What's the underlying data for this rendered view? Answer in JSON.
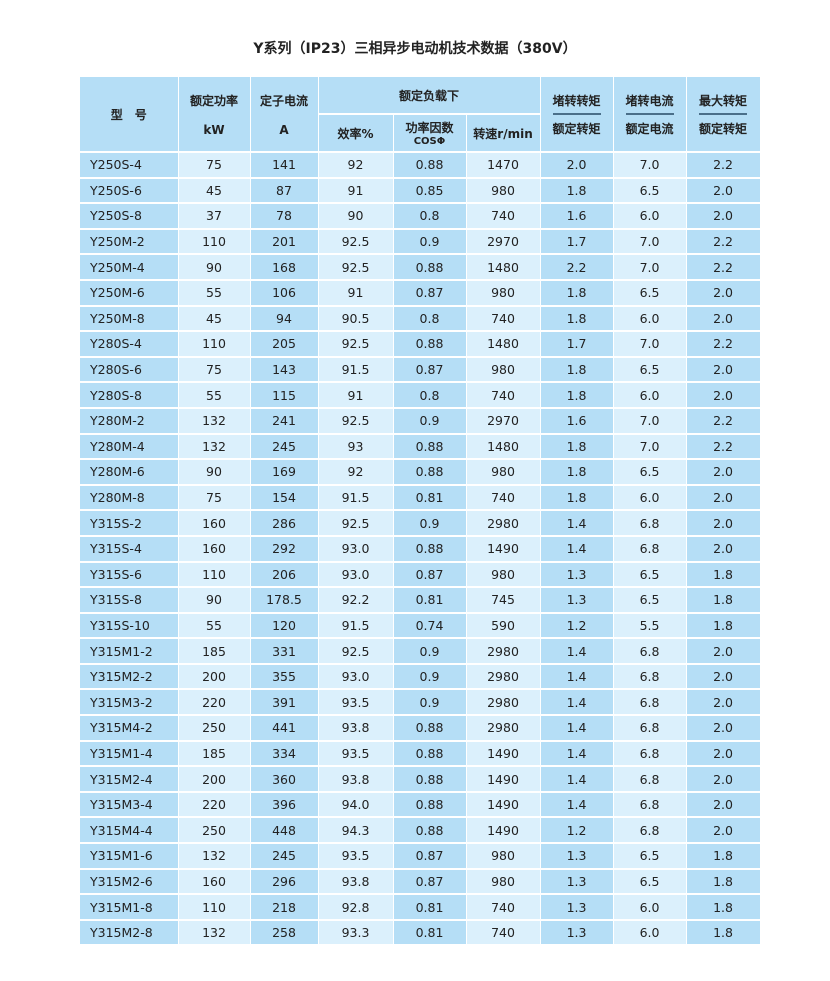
{
  "title": "Y系列（IP23）三相异步电动机技术数据（380V）",
  "header": {
    "model": "型　号",
    "power": "额定功率",
    "power_unit": "kW",
    "current": "定子电流",
    "current_unit": "A",
    "rated_load": "额定负载下",
    "efficiency": "效率%",
    "power_factor": "功率因数",
    "power_factor_sub": "COSΦ",
    "speed": "转速r/min",
    "locked_torque_top": "堵转转矩",
    "locked_torque_bottom": "额定转矩",
    "locked_current_top": "堵转电流",
    "locked_current_bottom": "额定电流",
    "max_torque_top": "最大转矩",
    "max_torque_bottom": "额定转矩"
  },
  "rows": [
    [
      "Y250S-4",
      "75",
      "141",
      "92",
      "0.88",
      "1470",
      "2.0",
      "7.0",
      "2.2"
    ],
    [
      "Y250S-6",
      "45",
      "87",
      "91",
      "0.85",
      "980",
      "1.8",
      "6.5",
      "2.0"
    ],
    [
      "Y250S-8",
      "37",
      "78",
      "90",
      "0.8",
      "740",
      "1.6",
      "6.0",
      "2.0"
    ],
    [
      "Y250M-2",
      "110",
      "201",
      "92.5",
      "0.9",
      "2970",
      "1.7",
      "7.0",
      "2.2"
    ],
    [
      "Y250M-4",
      "90",
      "168",
      "92.5",
      "0.88",
      "1480",
      "2.2",
      "7.0",
      "2.2"
    ],
    [
      "Y250M-6",
      "55",
      "106",
      "91",
      "0.87",
      "980",
      "1.8",
      "6.5",
      "2.0"
    ],
    [
      "Y250M-8",
      "45",
      "94",
      "90.5",
      "0.8",
      "740",
      "1.8",
      "6.0",
      "2.0"
    ],
    [
      "Y280S-4",
      "110",
      "205",
      "92.5",
      "0.88",
      "1480",
      "1.7",
      "7.0",
      "2.2"
    ],
    [
      "Y280S-6",
      "75",
      "143",
      "91.5",
      "0.87",
      "980",
      "1.8",
      "6.5",
      "2.0"
    ],
    [
      "Y280S-8",
      "55",
      "115",
      "91",
      "0.8",
      "740",
      "1.8",
      "6.0",
      "2.0"
    ],
    [
      "Y280M-2",
      "132",
      "241",
      "92.5",
      "0.9",
      "2970",
      "1.6",
      "7.0",
      "2.2"
    ],
    [
      "Y280M-4",
      "132",
      "245",
      "93",
      "0.88",
      "1480",
      "1.8",
      "7.0",
      "2.2"
    ],
    [
      "Y280M-6",
      "90",
      "169",
      "92",
      "0.88",
      "980",
      "1.8",
      "6.5",
      "2.0"
    ],
    [
      "Y280M-8",
      "75",
      "154",
      "91.5",
      "0.81",
      "740",
      "1.8",
      "6.0",
      "2.0"
    ],
    [
      "Y315S-2",
      "160",
      "286",
      "92.5",
      "0.9",
      "2980",
      "1.4",
      "6.8",
      "2.0"
    ],
    [
      "Y315S-4",
      "160",
      "292",
      "93.0",
      "0.88",
      "1490",
      "1.4",
      "6.8",
      "2.0"
    ],
    [
      "Y315S-6",
      "110",
      "206",
      "93.0",
      "0.87",
      "980",
      "1.3",
      "6.5",
      "1.8"
    ],
    [
      "Y315S-8",
      "90",
      "178.5",
      "92.2",
      "0.81",
      "745",
      "1.3",
      "6.5",
      "1.8"
    ],
    [
      "Y315S-10",
      "55",
      "120",
      "91.5",
      "0.74",
      "590",
      "1.2",
      "5.5",
      "1.8"
    ],
    [
      "Y315M1-2",
      "185",
      "331",
      "92.5",
      "0.9",
      "2980",
      "1.4",
      "6.8",
      "2.0"
    ],
    [
      "Y315M2-2",
      "200",
      "355",
      "93.0",
      "0.9",
      "2980",
      "1.4",
      "6.8",
      "2.0"
    ],
    [
      "Y315M3-2",
      "220",
      "391",
      "93.5",
      "0.9",
      "2980",
      "1.4",
      "6.8",
      "2.0"
    ],
    [
      "Y315M4-2",
      "250",
      "441",
      "93.8",
      "0.88",
      "2980",
      "1.4",
      "6.8",
      "2.0"
    ],
    [
      "Y315M1-4",
      "185",
      "334",
      "93.5",
      "0.88",
      "1490",
      "1.4",
      "6.8",
      "2.0"
    ],
    [
      "Y315M2-4",
      "200",
      "360",
      "93.8",
      "0.88",
      "1490",
      "1.4",
      "6.8",
      "2.0"
    ],
    [
      "Y315M3-4",
      "220",
      "396",
      "94.0",
      "0.88",
      "1490",
      "1.4",
      "6.8",
      "2.0"
    ],
    [
      "Y315M4-4",
      "250",
      "448",
      "94.3",
      "0.88",
      "1490",
      "1.2",
      "6.8",
      "2.0"
    ],
    [
      "Y315M1-6",
      "132",
      "245",
      "93.5",
      "0.87",
      "980",
      "1.3",
      "6.5",
      "1.8"
    ],
    [
      "Y315M2-6",
      "160",
      "296",
      "93.8",
      "0.87",
      "980",
      "1.3",
      "6.5",
      "1.8"
    ],
    [
      "Y315M1-8",
      "110",
      "218",
      "92.8",
      "0.81",
      "740",
      "1.3",
      "6.0",
      "1.8"
    ],
    [
      "Y315M2-8",
      "132",
      "258",
      "93.3",
      "0.81",
      "740",
      "1.3",
      "6.0",
      "1.8"
    ]
  ]
}
